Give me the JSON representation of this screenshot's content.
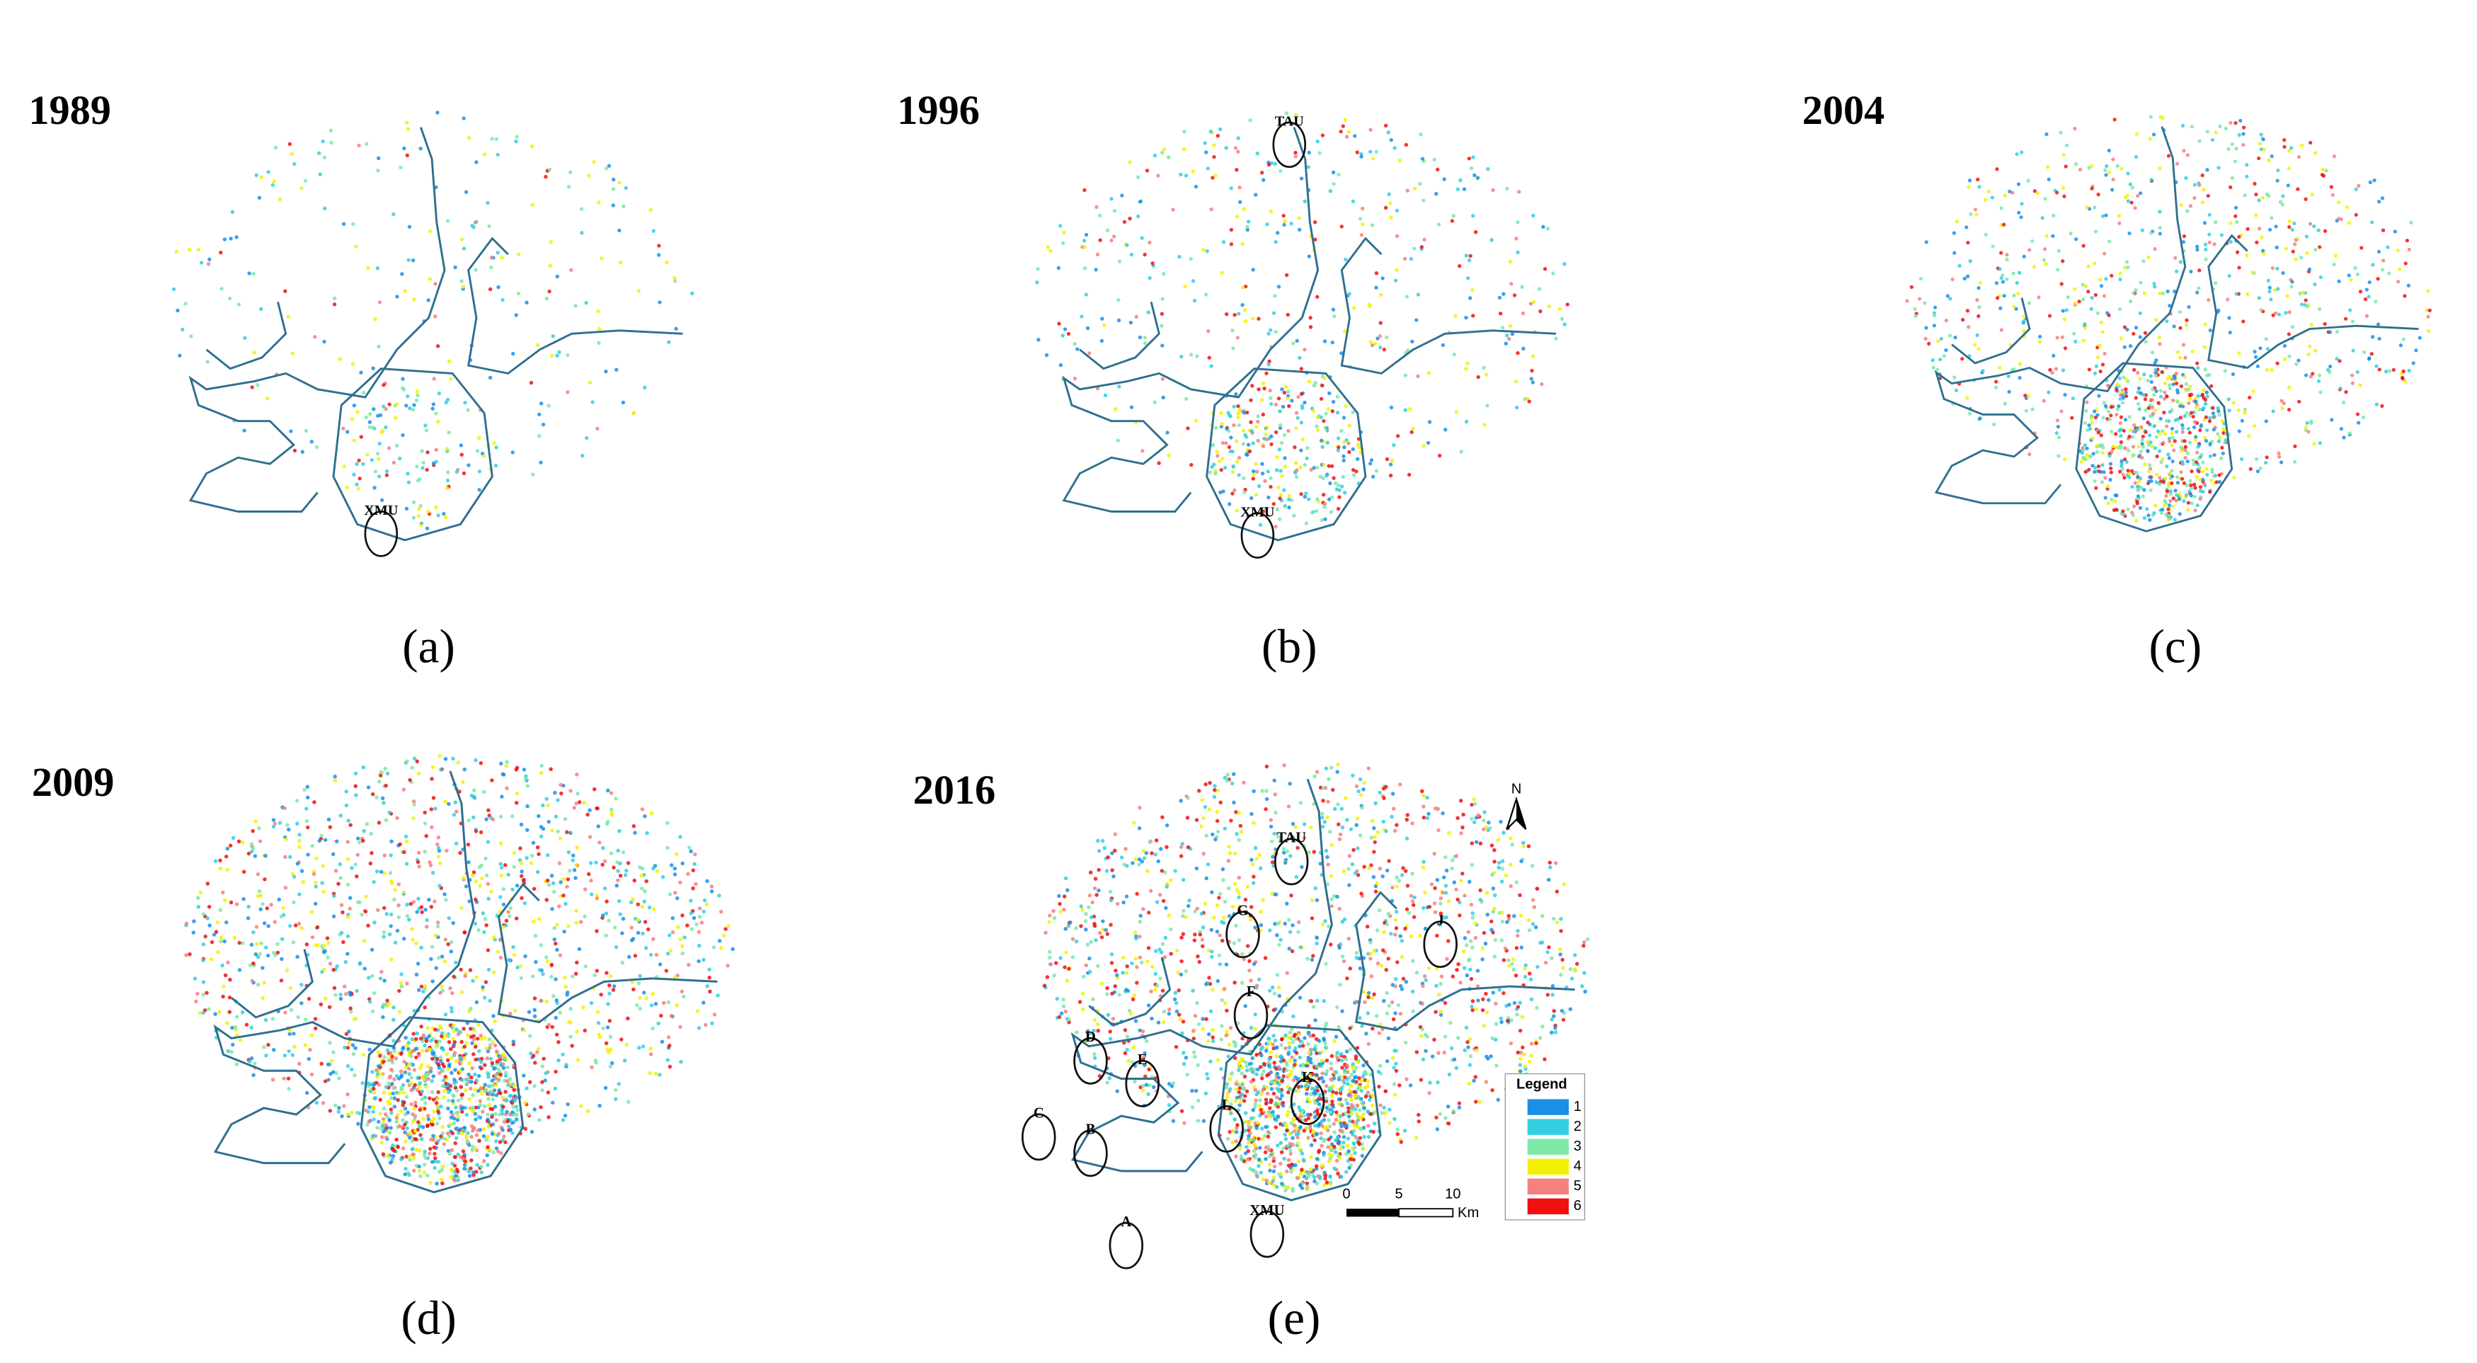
{
  "panels": [
    {
      "year": "1989",
      "caption": "(a)",
      "annotations": [
        "XMU"
      ]
    },
    {
      "year": "1996",
      "caption": "(b)",
      "annotations": [
        "TAU",
        "XMU"
      ]
    },
    {
      "year": "2004",
      "caption": "(c)",
      "annotations": []
    },
    {
      "year": "2009",
      "caption": "(d)",
      "annotations": []
    },
    {
      "year": "2016",
      "caption": "(e)",
      "annotations": [
        "TAU",
        "G",
        "J",
        "F",
        "D",
        "E",
        "C",
        "K",
        "L",
        "B",
        "A",
        "XMU"
      ]
    }
  ],
  "legend": {
    "title": "Legend",
    "items": [
      {
        "label": "1",
        "color": "#1a8fe8"
      },
      {
        "label": "2",
        "color": "#33cfe0"
      },
      {
        "label": "3",
        "color": "#7de8a8"
      },
      {
        "label": "4",
        "color": "#f2f200"
      },
      {
        "label": "5",
        "color": "#f58080"
      },
      {
        "label": "6",
        "color": "#f01010"
      }
    ]
  },
  "scale_bar": {
    "ticks": [
      "0",
      "5",
      "10"
    ],
    "unit": "Km"
  },
  "north": "N"
}
